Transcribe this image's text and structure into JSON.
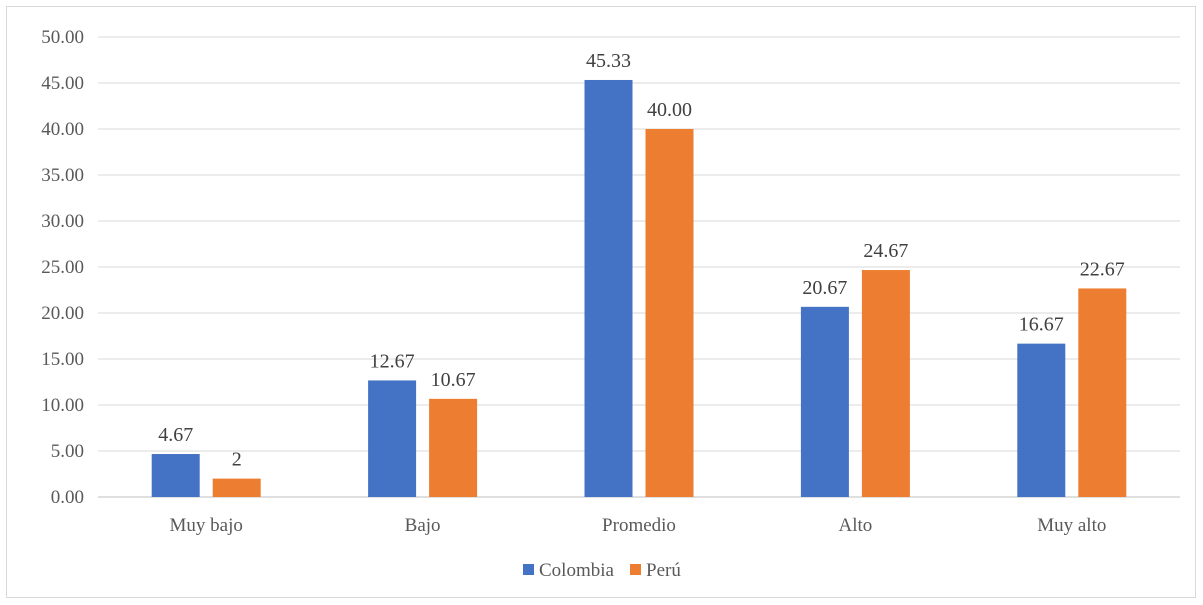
{
  "chart_data": {
    "type": "bar",
    "title": "",
    "xlabel": "",
    "ylabel": "",
    "categories": [
      "Muy bajo",
      "Bajo",
      "Promedio",
      "Alto",
      "Muy alto"
    ],
    "series": [
      {
        "name": "Colombia",
        "color": "#4472c4",
        "values": [
          4.67,
          12.67,
          45.33,
          20.67,
          16.67
        ],
        "labels": [
          "4.67",
          "12.67",
          "45.33",
          "20.67",
          "16.67"
        ]
      },
      {
        "name": "Perú",
        "color": "#ed7d31",
        "values": [
          2,
          10.67,
          40.0,
          24.67,
          22.67
        ],
        "labels": [
          "2",
          "10.67",
          "40.00",
          "24.67",
          "22.67"
        ]
      }
    ],
    "ylim": [
      0,
      50
    ],
    "yticks": [
      "0.00",
      "5.00",
      "10.00",
      "15.00",
      "20.00",
      "25.00",
      "30.00",
      "35.00",
      "40.00",
      "45.00",
      "50.00"
    ],
    "grid": true,
    "legend": "bottom-center",
    "gridline_color": "#d9d9d9"
  }
}
